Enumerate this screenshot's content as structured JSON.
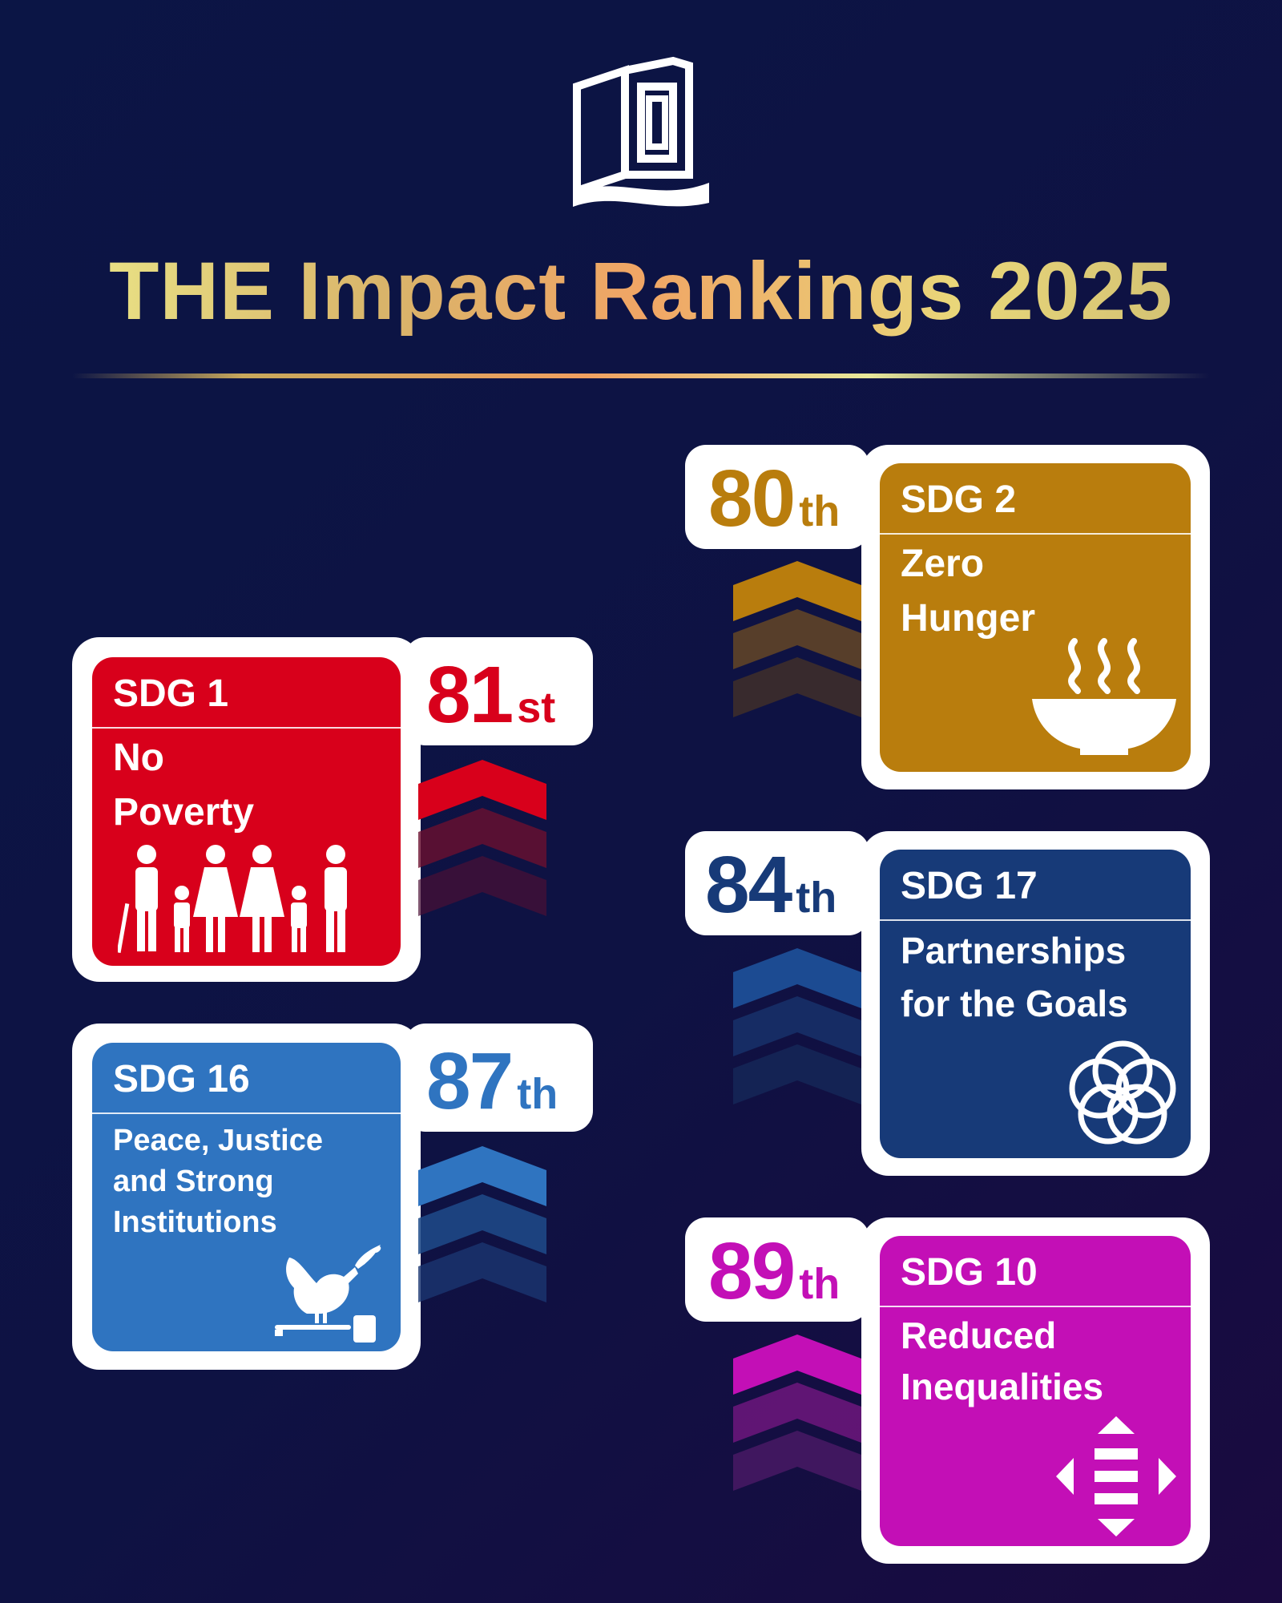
{
  "title": "THE Impact Rankings 2025",
  "colors": {
    "sdg1": "#d8001b",
    "sdg2": "#b97d0d",
    "sdg16": "#2f74c0",
    "sdg17": "#173a78",
    "sdg10": "#c30fb6",
    "title_gradient": [
      "#eef08e",
      "#f0a565",
      "#c9b770"
    ]
  },
  "cards": {
    "sdg1": {
      "sdg_label": "SDG 1",
      "name_line1": "No",
      "name_line2": "Poverty",
      "rank_number": "81",
      "rank_suffix": "st",
      "icon": "family-icon"
    },
    "sdg2": {
      "sdg_label": "SDG 2",
      "name_line1": "Zero",
      "name_line2": "Hunger",
      "rank_number": "80",
      "rank_suffix": "th",
      "icon": "food-bowl-icon"
    },
    "sdg16": {
      "sdg_label": "SDG 16",
      "name_line1": "Peace, Justice",
      "name_line2": "and Strong",
      "name_line3": "Institutions",
      "rank_number": "87",
      "rank_suffix": "th",
      "icon": "dove-gavel-icon"
    },
    "sdg17": {
      "sdg_label": "SDG 17",
      "name_line1": "Partnerships",
      "name_line2": "for the Goals",
      "rank_number": "84",
      "rank_suffix": "th",
      "icon": "rings-icon"
    },
    "sdg10": {
      "sdg_label": "SDG 10",
      "name_line1": "Reduced",
      "name_line2": "Inequalities",
      "rank_number": "89",
      "rank_suffix": "th",
      "icon": "equality-arrows-icon"
    }
  }
}
